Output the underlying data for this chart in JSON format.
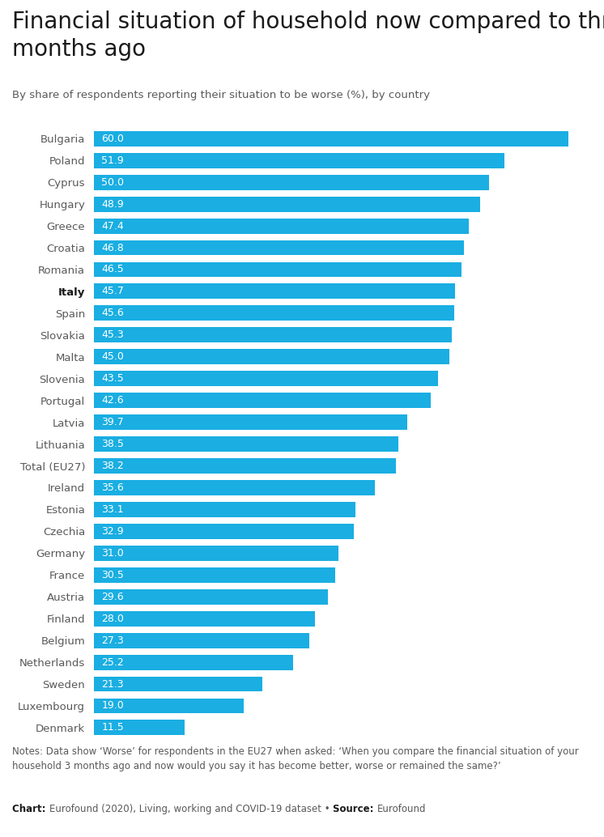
{
  "title": "Financial situation of household now compared to three\nmonths ago",
  "subtitle": "By share of respondents reporting their situation to be worse (%), by country",
  "notes": "Notes: Data show ‘Worse’ for respondents in the EU27 when asked: ‘When you compare the financial situation of your\nhousehold 3 months ago and now would you say it has become better, worse or remained the same?’ ",
  "chart_label_bold": "Chart: ",
  "chart_label_normal": "Eurofound (2020), Living, working and COVID-19 dataset • ",
  "source_label_bold": "Source: ",
  "source_label_normal": "Eurofound",
  "countries": [
    "Bulgaria",
    "Poland",
    "Cyprus",
    "Hungary",
    "Greece",
    "Croatia",
    "Romania",
    "Italy",
    "Spain",
    "Slovakia",
    "Malta",
    "Slovenia",
    "Portugal",
    "Latvia",
    "Lithuania",
    "Total (EU27)",
    "Ireland",
    "Estonia",
    "Czechia",
    "Germany",
    "France",
    "Austria",
    "Finland",
    "Belgium",
    "Netherlands",
    "Sweden",
    "Luxembourg",
    "Denmark"
  ],
  "values": [
    60.0,
    51.9,
    50.0,
    48.9,
    47.4,
    46.8,
    46.5,
    45.7,
    45.6,
    45.3,
    45.0,
    43.5,
    42.6,
    39.7,
    38.5,
    38.2,
    35.6,
    33.1,
    32.9,
    31.0,
    30.5,
    29.6,
    28.0,
    27.3,
    25.2,
    21.3,
    19.0,
    11.5
  ],
  "highlighted": "Italy",
  "bar_color": "#1AAEE2",
  "text_color": "#595959",
  "title_color": "#1a1a1a",
  "background_color": "#ffffff",
  "xlim": [
    0,
    63
  ],
  "bar_height": 0.7
}
